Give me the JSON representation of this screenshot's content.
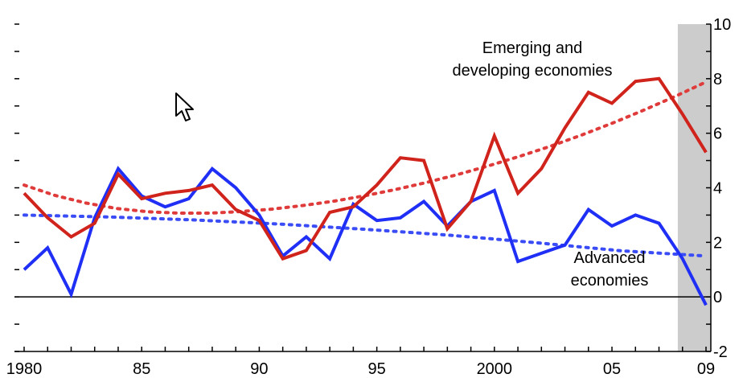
{
  "chart_data": {
    "type": "line",
    "title": "",
    "xlabel": "",
    "ylabel": "",
    "x_tick_labels": [
      {
        "year": 1980,
        "label": "1980"
      },
      {
        "year": 1985,
        "label": "85"
      },
      {
        "year": 1990,
        "label": "90"
      },
      {
        "year": 1995,
        "label": "95"
      },
      {
        "year": 2000,
        "label": "2000"
      },
      {
        "year": 2005,
        "label": "05"
      },
      {
        "year": 2009,
        "label": "09"
      }
    ],
    "xlim": [
      1980,
      2009
    ],
    "ylim": [
      -2,
      10
    ],
    "y_ticks": [
      -2,
      0,
      2,
      4,
      6,
      8,
      10
    ],
    "y_tick_labels": [
      "-2",
      "0",
      "2",
      "4",
      "6",
      "8",
      "10"
    ],
    "grid": false,
    "shaded_region": {
      "from": 2007.8,
      "to": 2009,
      "color": "#cccccc"
    },
    "x": [
      1980,
      1981,
      1982,
      1983,
      1984,
      1985,
      1986,
      1987,
      1988,
      1989,
      1990,
      1991,
      1992,
      1993,
      1994,
      1995,
      1996,
      1997,
      1998,
      1999,
      2000,
      2001,
      2002,
      2003,
      2004,
      2005,
      2006,
      2007,
      2008,
      2009
    ],
    "series": [
      {
        "name": "Emerging and developing economies",
        "color": "#d0231c",
        "values": [
          3.8,
          2.9,
          2.2,
          2.7,
          4.5,
          3.6,
          3.8,
          3.9,
          4.1,
          3.2,
          2.8,
          1.4,
          1.7,
          3.1,
          3.3,
          4.1,
          5.1,
          5.0,
          2.5,
          3.5,
          5.9,
          3.8,
          4.7,
          6.2,
          7.5,
          7.1,
          7.9,
          8.0,
          6.7,
          5.3
        ]
      },
      {
        "name": "Advanced economies",
        "color": "#1f2ff5",
        "values": [
          1.0,
          1.8,
          0.1,
          2.9,
          4.7,
          3.7,
          3.3,
          3.6,
          4.7,
          4.0,
          3.0,
          1.5,
          2.2,
          1.4,
          3.4,
          2.8,
          2.9,
          3.5,
          2.6,
          3.5,
          3.9,
          1.3,
          1.6,
          1.9,
          3.2,
          2.6,
          3.0,
          2.7,
          1.4,
          -0.3
        ]
      }
    ],
    "trendlines": [
      {
        "series": "Emerging and developing economies",
        "color": "#e03b3b",
        "style": "dotted",
        "values": [
          4.1,
          3.72,
          3.44,
          3.24,
          3.12,
          3.07,
          3.07,
          3.13,
          3.22,
          3.35,
          3.51,
          3.71,
          3.94,
          4.2,
          4.49,
          4.81,
          5.16,
          5.53,
          5.94,
          6.38,
          6.85,
          7.35,
          7.88
        ]
      },
      {
        "series": "Advanced economies",
        "color": "#3a4cf5",
        "style": "dotted",
        "values": [
          3.0,
          2.93,
          2.82,
          2.67,
          2.48,
          2.26,
          1.99,
          1.69,
          1.5
        ]
      }
    ],
    "annotations": [
      {
        "text_lines": [
          "Emerging and",
          "developing economies"
        ],
        "series": "Emerging and developing economies"
      },
      {
        "text_lines": [
          "Advanced",
          "economies"
        ],
        "series": "Advanced economies"
      }
    ]
  }
}
